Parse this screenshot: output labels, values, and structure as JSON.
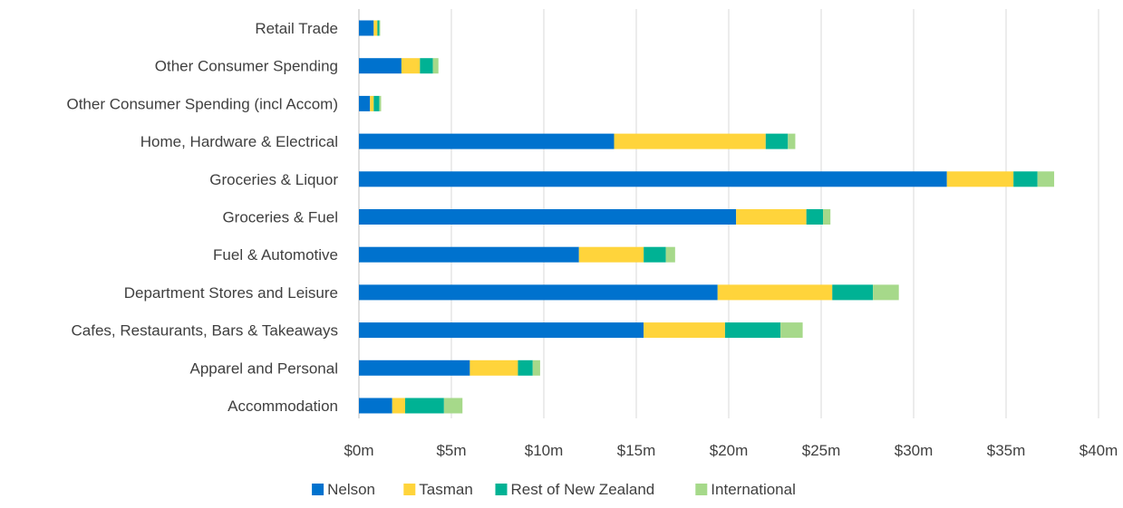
{
  "chart_data": {
    "type": "bar",
    "orientation": "horizontal",
    "stacked": true,
    "title": "",
    "xlabel": "",
    "ylabel": "",
    "categories": [
      "Retail Trade",
      "Other Consumer Spending",
      "Other Consumer Spending (incl Accom)",
      "Home, Hardware & Electrical",
      "Groceries & Liquor",
      "Groceries & Fuel",
      "Fuel & Automotive",
      "Department Stores and Leisure",
      "Cafes, Restaurants, Bars & Takeaways",
      "Apparel and Personal",
      "Accommodation"
    ],
    "series": [
      {
        "name": "Nelson",
        "color": "#0072CE",
        "values": [
          0.8,
          2.3,
          0.6,
          13.8,
          31.8,
          20.4,
          11.9,
          19.4,
          15.4,
          6.0,
          1.8
        ]
      },
      {
        "name": "Tasman",
        "color": "#FFD43B",
        "values": [
          0.2,
          1.0,
          0.2,
          8.2,
          3.6,
          3.8,
          3.5,
          6.2,
          4.4,
          2.6,
          0.7
        ]
      },
      {
        "name": "Rest of New Zealand",
        "color": "#00B294",
        "values": [
          0.1,
          0.7,
          0.3,
          1.2,
          1.3,
          0.9,
          1.2,
          2.2,
          3.0,
          0.8,
          2.1
        ]
      },
      {
        "name": "International",
        "color": "#A6D98A",
        "values": [
          0.05,
          0.3,
          0.1,
          0.4,
          0.9,
          0.4,
          0.5,
          1.4,
          1.2,
          0.4,
          1.0
        ]
      }
    ],
    "xlim": [
      0,
      40
    ],
    "ticks": [
      {
        "value": 0,
        "label": "$0m"
      },
      {
        "value": 5,
        "label": "$5m"
      },
      {
        "value": 10,
        "label": "$10m"
      },
      {
        "value": 15,
        "label": "$15m"
      },
      {
        "value": 20,
        "label": "$20m"
      },
      {
        "value": 25,
        "label": "$25m"
      },
      {
        "value": 30,
        "label": "$30m"
      },
      {
        "value": 35,
        "label": "$35m"
      },
      {
        "value": 40,
        "label": "$40m"
      }
    ],
    "grid": "vertical gridlines on",
    "legend": "bottom"
  }
}
